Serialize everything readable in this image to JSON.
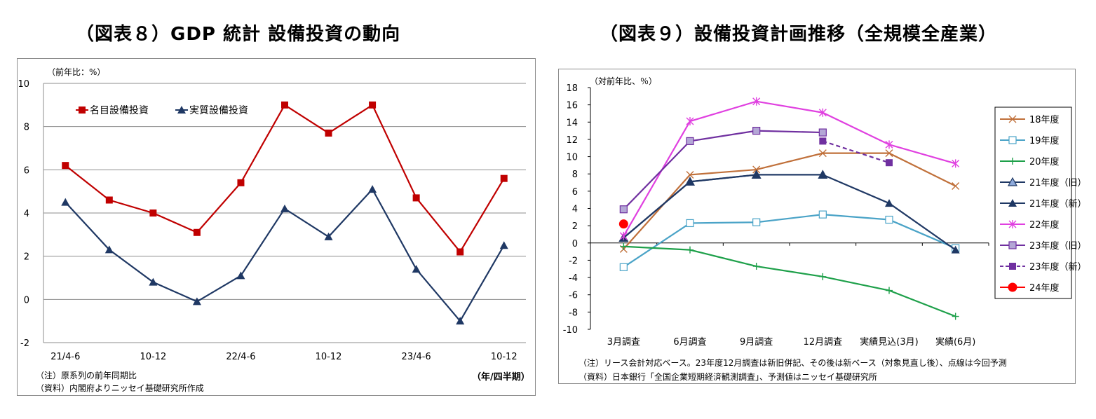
{
  "left_chart": {
    "title": "（図表８）GDP 統計 設備投資の動向",
    "unit_label": "（前年比：%）",
    "period_label": "（年/四半期）",
    "notes": [
      "（注）原系列の前年同期比",
      "（資料）内閣府よりニッセイ基礎研究所作成"
    ]
  },
  "right_chart": {
    "title": "（図表９）設備投資計画推移（全規模全産業）",
    "unit_label": "（対前年比、％）",
    "notes": [
      "（注）リース会計対応ベース。23年度12月調査は新旧併記、その後は新ベース（対象見直し後）、点線は今回予測",
      "（資料）日本銀行「全国企業短期経済観測調査」、予測値はニッセイ基礎研究所"
    ]
  },
  "chart_data": [
    {
      "type": "line",
      "title": "（図表８）GDP 統計 設備投資の動向",
      "ylabel": "（前年比：%）",
      "xlabel": "（年/四半期）",
      "ylim": [
        -2,
        10
      ],
      "yticks": [
        -2,
        0,
        2,
        4,
        6,
        8,
        10
      ],
      "grid": true,
      "legend_position": "top-left",
      "categories": [
        "21/4-6",
        "",
        "10-12",
        "",
        "22/4-6",
        "",
        "10-12",
        "",
        "23/4-6",
        "",
        "10-12"
      ],
      "series": [
        {
          "name": "名目設備投資",
          "color": "#c00000",
          "marker": "square",
          "values": [
            6.2,
            4.6,
            4.0,
            3.1,
            5.4,
            9.0,
            7.7,
            9.0,
            4.7,
            2.2,
            5.6
          ]
        },
        {
          "name": "実質設備投資",
          "color": "#1f3864",
          "marker": "triangle",
          "values": [
            4.5,
            2.3,
            0.8,
            -0.1,
            1.1,
            4.2,
            2.9,
            5.1,
            1.4,
            -1.0,
            2.5
          ]
        }
      ]
    },
    {
      "type": "line",
      "title": "（図表９）設備投資計画推移（全規模全産業）",
      "ylabel": "（対前年比、％）",
      "ylim": [
        -10,
        18
      ],
      "yticks": [
        -10,
        -8,
        -6,
        -4,
        -2,
        0,
        2,
        4,
        6,
        8,
        10,
        12,
        14,
        16,
        18
      ],
      "grid": false,
      "legend_position": "right",
      "categories": [
        "3月調査",
        "6月調査",
        "9月調査",
        "12月調査",
        "実績見込(3月)",
        "実績(6月)"
      ],
      "series": [
        {
          "name": "18年度",
          "color": "#c0703a",
          "marker": "x",
          "dash": false,
          "values": [
            -0.7,
            7.9,
            8.5,
            10.4,
            10.4,
            6.6
          ]
        },
        {
          "name": "19年度",
          "color": "#4aa3c7",
          "marker": "square-open",
          "dash": false,
          "values": [
            -2.8,
            2.3,
            2.4,
            3.3,
            2.7,
            -0.6
          ]
        },
        {
          "name": "20年度",
          "color": "#1ea04a",
          "marker": "plus",
          "dash": false,
          "values": [
            -0.4,
            -0.8,
            -2.7,
            -3.9,
            -5.5,
            -8.5
          ]
        },
        {
          "name": "21年度（旧）",
          "color": "#1f3864",
          "marker": "triangle-light",
          "dash": false,
          "values": [
            0.6,
            7.1,
            7.9,
            7.9,
            null,
            null
          ]
        },
        {
          "name": "21年度（新）",
          "color": "#1f3864",
          "marker": "triangle",
          "dash": false,
          "values": [
            0.6,
            7.1,
            7.9,
            7.9,
            4.6,
            -0.8
          ]
        },
        {
          "name": "22年度",
          "color": "#e040e0",
          "marker": "star",
          "dash": false,
          "values": [
            0.8,
            14.1,
            16.4,
            15.1,
            11.4,
            9.2
          ]
        },
        {
          "name": "23年度（旧）",
          "color": "#7030a0",
          "marker": "square-light",
          "dash": false,
          "values": [
            3.9,
            11.8,
            13.0,
            12.8,
            null,
            null
          ]
        },
        {
          "name": "23年度（新）",
          "color": "#7030a0",
          "marker": "square",
          "dash": true,
          "values": [
            null,
            null,
            null,
            11.8,
            9.3,
            null
          ]
        },
        {
          "name": "24年度",
          "color": "#ff0000",
          "marker": "circle",
          "dash": false,
          "values": [
            2.2,
            null,
            null,
            null,
            null,
            null
          ]
        }
      ]
    }
  ]
}
